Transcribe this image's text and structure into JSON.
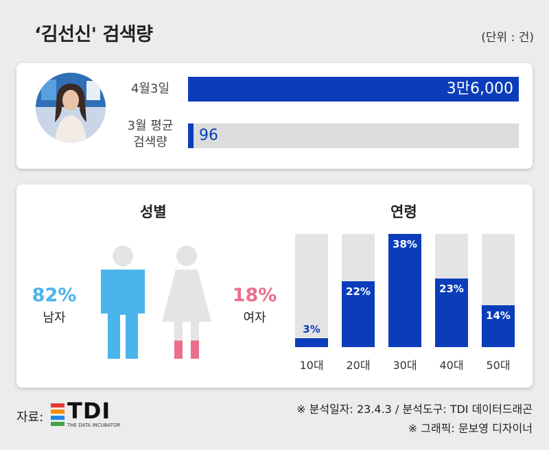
{
  "title": "‘김선신' 검색량",
  "unit": "(단위 : 건)",
  "search": {
    "today_label": "4월3일",
    "today_value_text": "3만6,000",
    "avg_label_line1": "3월 평균",
    "avg_label_line2": "검색량",
    "avg_value_text": "96"
  },
  "gender": {
    "title": "성별",
    "male_pct_text": "82%",
    "male_label": "남자",
    "female_pct_text": "18%",
    "female_label": "여자"
  },
  "age": {
    "title": "연령"
  },
  "chart_data": [
    {
      "type": "bar",
      "orientation": "horizontal",
      "categories": [
        "4월3일",
        "3월 평균 검색량"
      ],
      "values": [
        36000,
        96
      ],
      "value_labels": [
        "3만6,000",
        "96"
      ],
      "xlim": [
        0,
        36000
      ]
    },
    {
      "type": "pie",
      "categories": [
        "남자",
        "여자"
      ],
      "values": [
        82,
        18
      ],
      "value_labels": [
        "82%",
        "18%"
      ]
    },
    {
      "type": "bar",
      "categories": [
        "10대",
        "20대",
        "30대",
        "40대",
        "50대"
      ],
      "values": [
        3,
        22,
        38,
        23,
        14
      ],
      "value_labels": [
        "3%",
        "22%",
        "38%",
        "23%",
        "14%"
      ],
      "ylim": [
        0,
        38
      ]
    }
  ],
  "footer": {
    "source_label": "자료:",
    "logo_text": "TDI",
    "logo_subtitle": "THE DATA INCUBATOR",
    "analysis_note": "※ 분석일자: 23.4.3 / 분석도구: TDI 데이터드래곤",
    "graphic_note": "※ 그래픽: 문보영 디자이너"
  },
  "colors": {
    "bar_blue": "#0b3dbb",
    "male": "#4bb4ea",
    "female": "#ea6f8b",
    "track": "#dcdcdc"
  }
}
